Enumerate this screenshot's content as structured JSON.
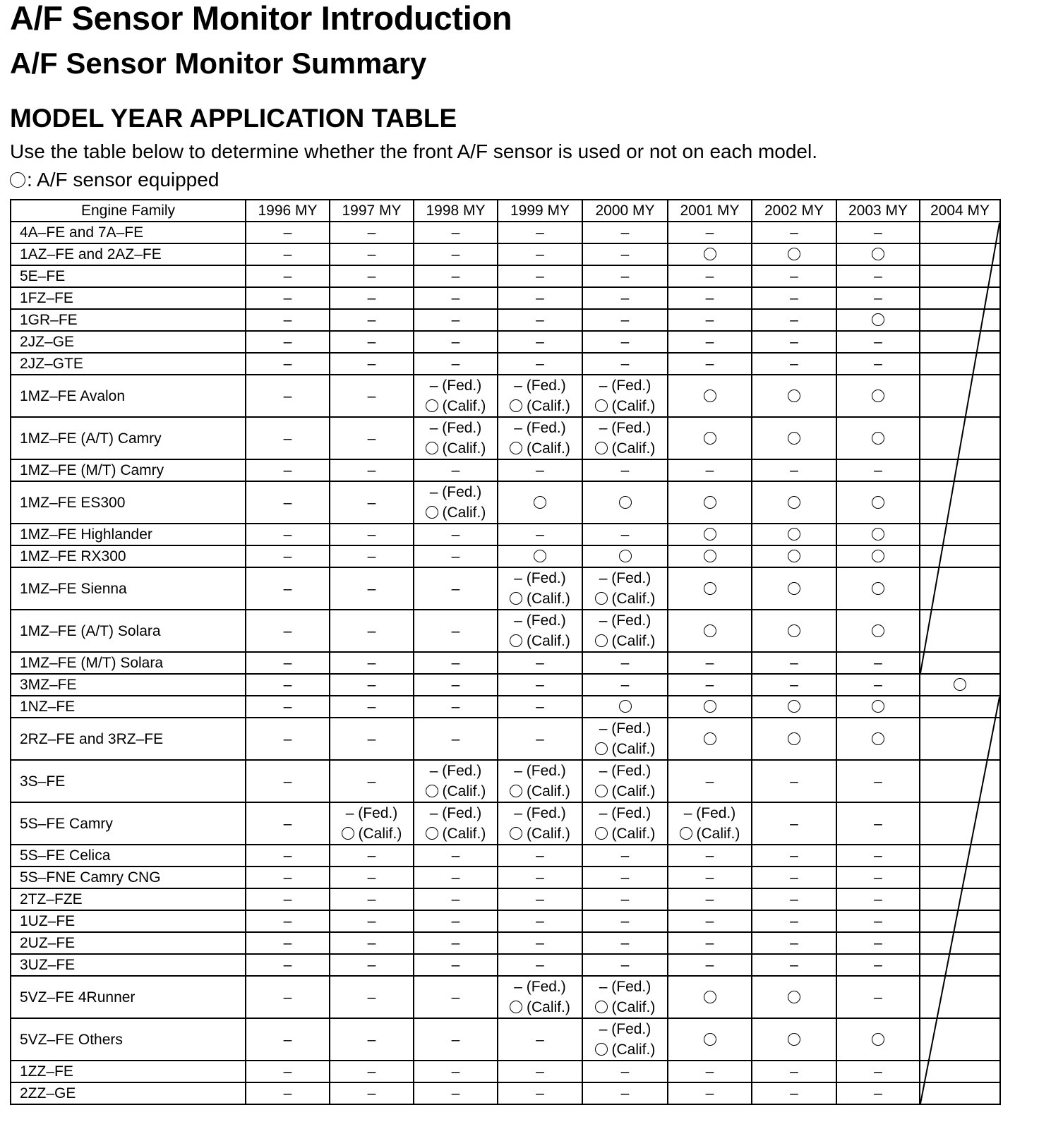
{
  "title": "A/F Sensor Monitor Introduction",
  "subtitle": "A/F Sensor Monitor Summary",
  "section_heading": "MODEL YEAR APPLICATION TABLE",
  "instructions": "Use the table below to determine whether the front A/F sensor is used or not on each model.",
  "legend": {
    "symbol": "○",
    "text": ": A/F sensor equipped"
  },
  "table": {
    "headers": [
      "Engine Family",
      "1996 MY",
      "1997 MY",
      "1998 MY",
      "1999 MY",
      "2000 MY",
      "2001 MY",
      "2002 MY",
      "2003 MY",
      "2004 MY"
    ],
    "split_cell": {
      "fed": "– (Fed.)",
      "calif": "(Calif.)"
    },
    "rows": [
      {
        "engine": "4A–FE and 7A–FE",
        "cells": [
          "–",
          "–",
          "–",
          "–",
          "–",
          "–",
          "–",
          "–",
          ""
        ]
      },
      {
        "engine": "1AZ–FE and 2AZ–FE",
        "cells": [
          "–",
          "–",
          "–",
          "–",
          "–",
          "○",
          "○",
          "○",
          ""
        ]
      },
      {
        "engine": "5E–FE",
        "cells": [
          "–",
          "–",
          "–",
          "–",
          "–",
          "–",
          "–",
          "–",
          ""
        ]
      },
      {
        "engine": "1FZ–FE",
        "cells": [
          "–",
          "–",
          "–",
          "–",
          "–",
          "–",
          "–",
          "–",
          ""
        ]
      },
      {
        "engine": "1GR–FE",
        "cells": [
          "–",
          "–",
          "–",
          "–",
          "–",
          "–",
          "–",
          "○",
          ""
        ]
      },
      {
        "engine": "2JZ–GE",
        "cells": [
          "–",
          "–",
          "–",
          "–",
          "–",
          "–",
          "–",
          "–",
          ""
        ]
      },
      {
        "engine": "2JZ–GTE",
        "cells": [
          "–",
          "–",
          "–",
          "–",
          "–",
          "–",
          "–",
          "–",
          ""
        ]
      },
      {
        "engine": "1MZ–FE Avalon",
        "cells": [
          "–",
          "–",
          "FC",
          "FC",
          "FC",
          "○",
          "○",
          "○",
          ""
        ]
      },
      {
        "engine": "1MZ–FE (A/T) Camry",
        "cells": [
          "–",
          "–",
          "FC",
          "FC",
          "FC",
          "○",
          "○",
          "○",
          ""
        ]
      },
      {
        "engine": "1MZ–FE (M/T) Camry",
        "cells": [
          "–",
          "–",
          "–",
          "–",
          "–",
          "–",
          "–",
          "–",
          ""
        ]
      },
      {
        "engine": "1MZ–FE ES300",
        "cells": [
          "–",
          "–",
          "FC",
          "○",
          "○",
          "○",
          "○",
          "○",
          ""
        ]
      },
      {
        "engine": "1MZ–FE Highlander",
        "cells": [
          "–",
          "–",
          "–",
          "–",
          "–",
          "○",
          "○",
          "○",
          ""
        ]
      },
      {
        "engine": "1MZ–FE RX300",
        "cells": [
          "–",
          "–",
          "–",
          "○",
          "○",
          "○",
          "○",
          "○",
          ""
        ]
      },
      {
        "engine": "1MZ–FE Sienna",
        "cells": [
          "–",
          "–",
          "–",
          "FC",
          "FC",
          "○",
          "○",
          "○",
          ""
        ]
      },
      {
        "engine": "1MZ–FE (A/T) Solara",
        "cells": [
          "–",
          "–",
          "–",
          "FC",
          "FC",
          "○",
          "○",
          "○",
          ""
        ]
      },
      {
        "engine": "1MZ–FE (M/T) Solara",
        "cells": [
          "–",
          "–",
          "–",
          "–",
          "–",
          "–",
          "–",
          "–",
          ""
        ]
      },
      {
        "engine": "3MZ–FE",
        "cells": [
          "–",
          "–",
          "–",
          "–",
          "–",
          "–",
          "–",
          "–",
          "○"
        ]
      },
      {
        "engine": "1NZ–FE",
        "cells": [
          "–",
          "–",
          "–",
          "–",
          "○",
          "○",
          "○",
          "○",
          ""
        ]
      },
      {
        "engine": "2RZ–FE and 3RZ–FE",
        "cells": [
          "–",
          "–",
          "–",
          "–",
          "FC",
          "○",
          "○",
          "○",
          ""
        ]
      },
      {
        "engine": "3S–FE",
        "cells": [
          "–",
          "–",
          "FC",
          "FC",
          "FC",
          "–",
          "–",
          "–",
          ""
        ]
      },
      {
        "engine": "5S–FE Camry",
        "cells": [
          "–",
          "FC",
          "FC",
          "FC",
          "FC",
          "FC",
          "–",
          "–",
          ""
        ]
      },
      {
        "engine": "5S–FE Celica",
        "cells": [
          "–",
          "–",
          "–",
          "–",
          "–",
          "–",
          "–",
          "–",
          ""
        ]
      },
      {
        "engine": "5S–FNE Camry CNG",
        "cells": [
          "–",
          "–",
          "–",
          "–",
          "–",
          "–",
          "–",
          "–",
          ""
        ]
      },
      {
        "engine": "2TZ–FZE",
        "cells": [
          "–",
          "–",
          "–",
          "–",
          "–",
          "–",
          "–",
          "–",
          ""
        ]
      },
      {
        "engine": "1UZ–FE",
        "cells": [
          "–",
          "–",
          "–",
          "–",
          "–",
          "–",
          "–",
          "–",
          ""
        ]
      },
      {
        "engine": "2UZ–FE",
        "cells": [
          "–",
          "–",
          "–",
          "–",
          "–",
          "–",
          "–",
          "–",
          ""
        ]
      },
      {
        "engine": "3UZ–FE",
        "cells": [
          "–",
          "–",
          "–",
          "–",
          "–",
          "–",
          "–",
          "–",
          ""
        ]
      },
      {
        "engine": "5VZ–FE 4Runner",
        "cells": [
          "–",
          "–",
          "–",
          "FC",
          "FC",
          "○",
          "○",
          "–",
          ""
        ]
      },
      {
        "engine": "5VZ–FE Others",
        "cells": [
          "–",
          "–",
          "–",
          "–",
          "FC",
          "○",
          "○",
          "○",
          ""
        ]
      },
      {
        "engine": "1ZZ–FE",
        "cells": [
          "–",
          "–",
          "–",
          "–",
          "–",
          "–",
          "–",
          "–",
          ""
        ]
      },
      {
        "engine": "2ZZ–GE",
        "cells": [
          "–",
          "–",
          "–",
          "–",
          "–",
          "–",
          "–",
          "–",
          ""
        ]
      }
    ]
  }
}
